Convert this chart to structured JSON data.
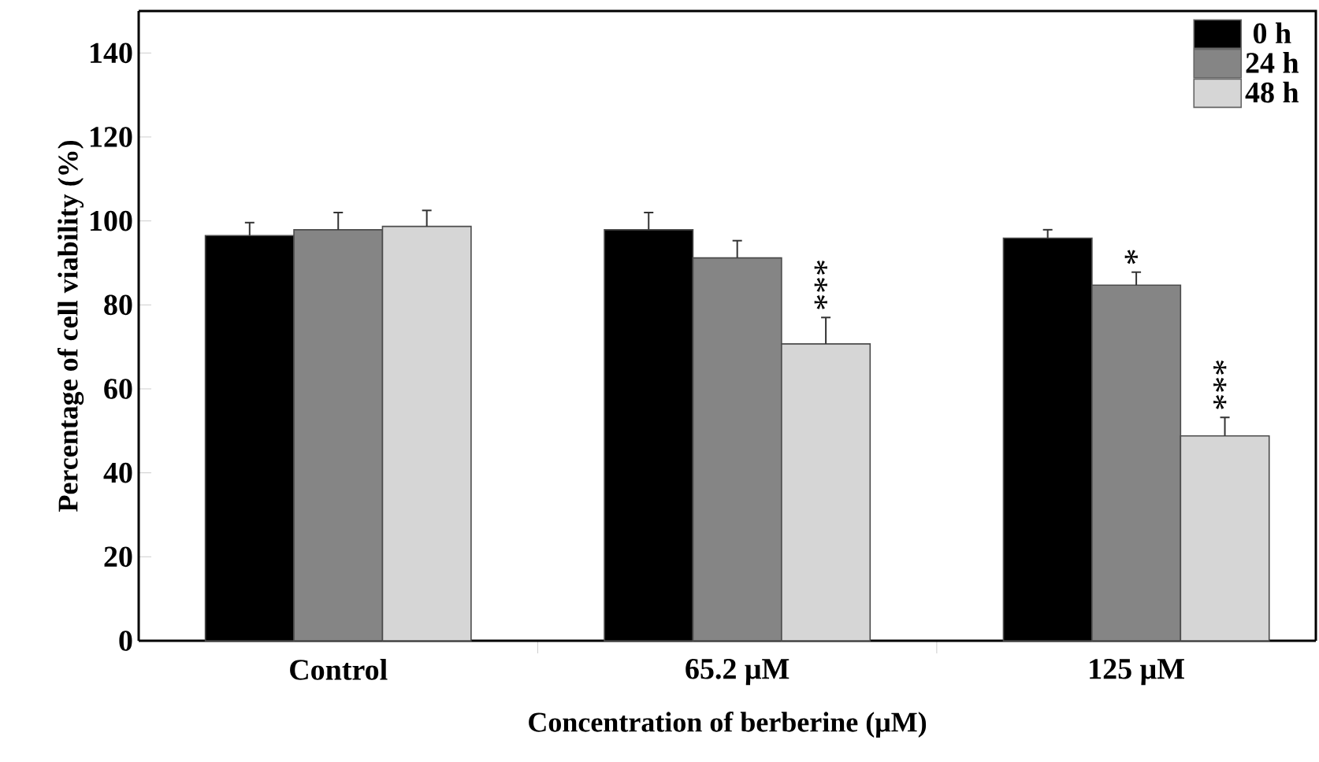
{
  "chart_data": {
    "type": "bar",
    "xlabel": "Concentration of berberine (μM)",
    "ylabel": "Percentage of cell viability  (%)",
    "categories": [
      "Control",
      "65.2 μM",
      "125 μM"
    ],
    "series": [
      {
        "name": "0 h",
        "color": "#000000",
        "values": [
          96.5,
          97.9,
          95.9
        ],
        "errors": [
          3.1,
          4.1,
          2.0
        ]
      },
      {
        "name": "24 h",
        "color": "#858585",
        "values": [
          97.9,
          91.2,
          84.7
        ],
        "errors": [
          4.1,
          4.1,
          3.1
        ]
      },
      {
        "name": "48 h",
        "color": "#d6d6d6",
        "values": [
          98.7,
          70.7,
          48.8
        ],
        "errors": [
          3.8,
          6.3,
          4.4
        ]
      }
    ],
    "ylim": [
      0,
      150
    ],
    "yticks": [
      0,
      20,
      40,
      60,
      80,
      100,
      120,
      140
    ],
    "grid": false,
    "legend": "top right",
    "annotations": [
      "***",
      "*",
      "***"
    ]
  }
}
